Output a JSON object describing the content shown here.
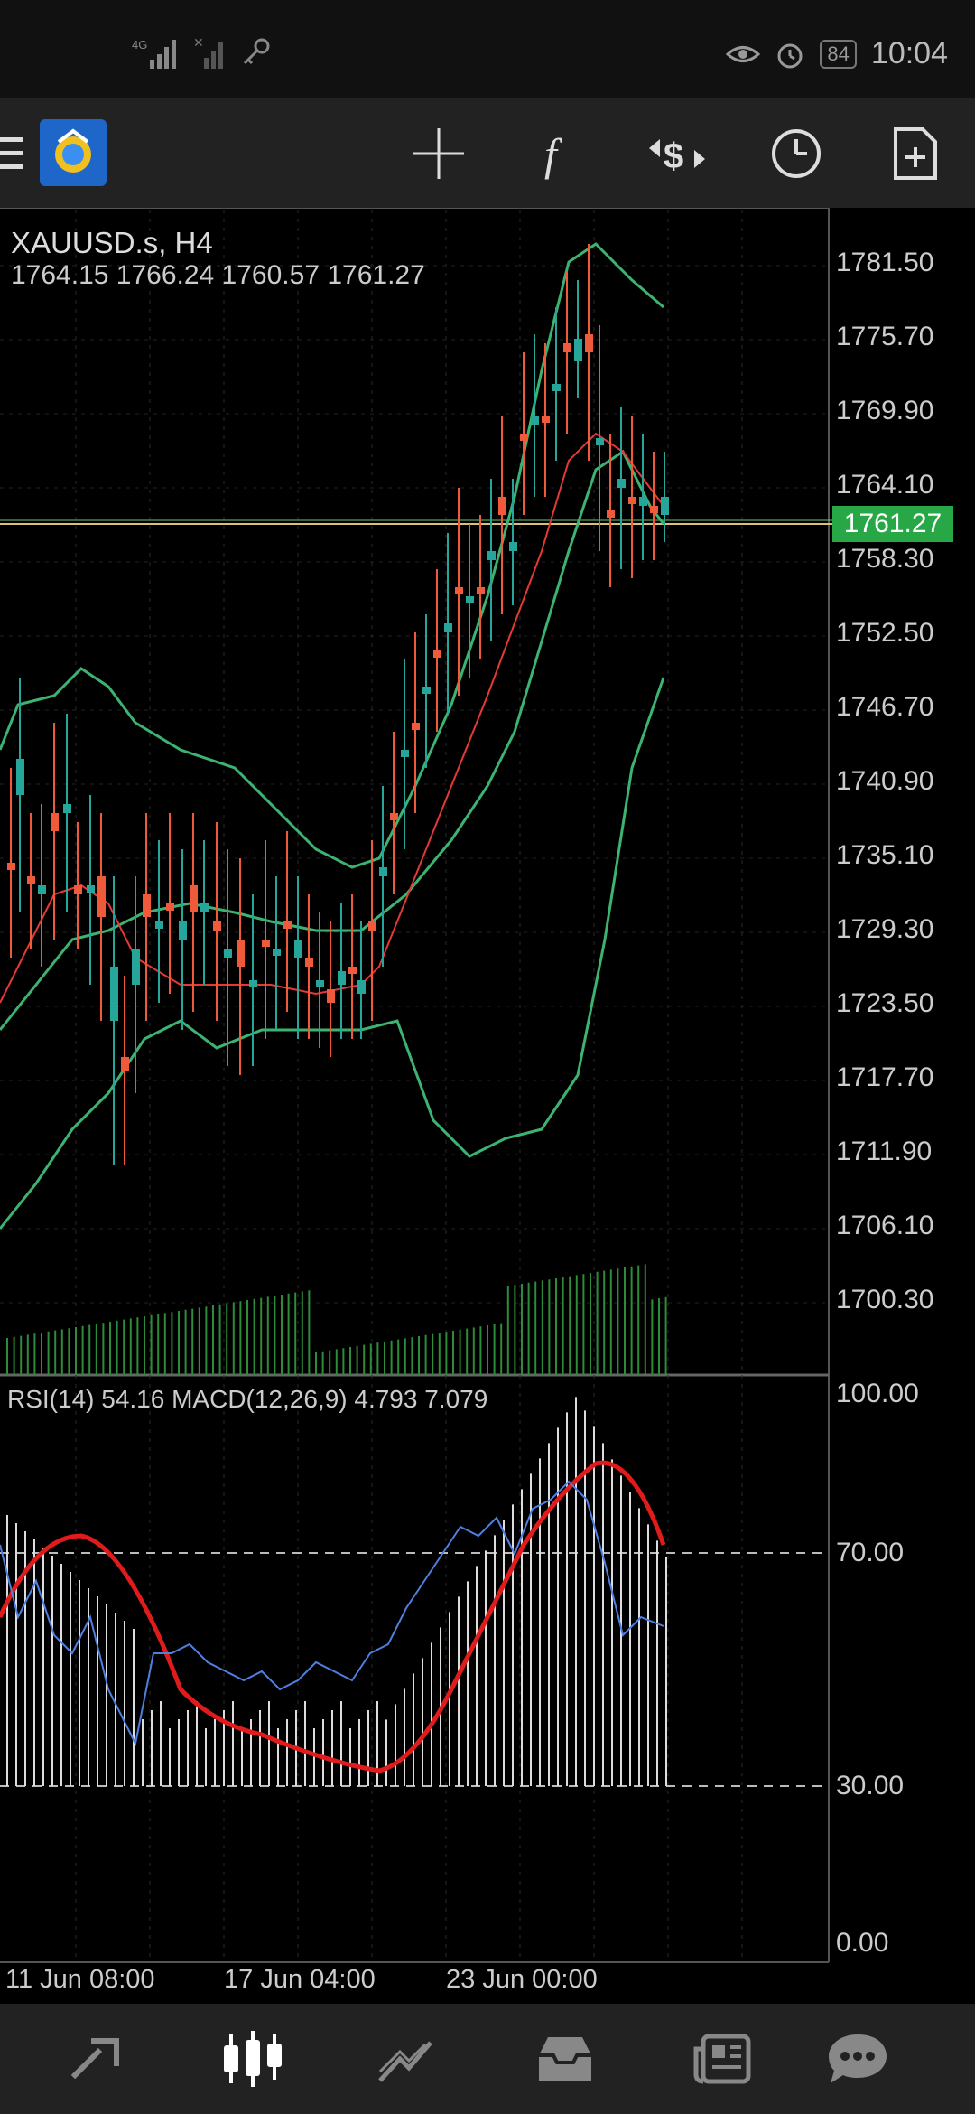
{
  "status_bar": {
    "network": "4G",
    "battery": "84",
    "time": "10:04"
  },
  "toolbar": {
    "icons": [
      "menu-icon",
      "app-logo",
      "crosshair-icon",
      "function-icon",
      "trade-icon",
      "clock-icon",
      "new-document-icon"
    ]
  },
  "chart": {
    "symbol": "XAUUSD.s, H4",
    "ohlc": "1764.15 1766.24 1760.57 1761.27",
    "current_price": "1761.27",
    "price_axis": [
      "1781.50",
      "1775.70",
      "1769.90",
      "1764.10",
      "1758.30",
      "1752.50",
      "1746.70",
      "1740.90",
      "1735.10",
      "1729.30",
      "1723.50",
      "1717.70",
      "1711.90",
      "1706.10",
      "1700.30"
    ],
    "indicator_label": "RSI(14) 54.16 MACD(12,26,9) 4.793 7.079",
    "indicator_axis": [
      "100.00",
      "70.00",
      "30.00",
      "0.00"
    ],
    "time_axis": [
      "11 Jun 08:00",
      "17 Jun 04:00",
      "23 Jun 00:00"
    ],
    "colors": {
      "bull": "#26a69a",
      "bear": "#ef5a3a",
      "bands": "#3cb371",
      "ma": "#e53935",
      "rsi": "#4f7fe0",
      "signal": "#e01b1b",
      "price_tag": "#27a745"
    }
  },
  "bottom_nav": {
    "icons": [
      "quotes-icon",
      "chart-icon",
      "trade-icon",
      "history-icon",
      "news-icon",
      "chat-icon"
    ],
    "active": "chart-icon"
  }
}
